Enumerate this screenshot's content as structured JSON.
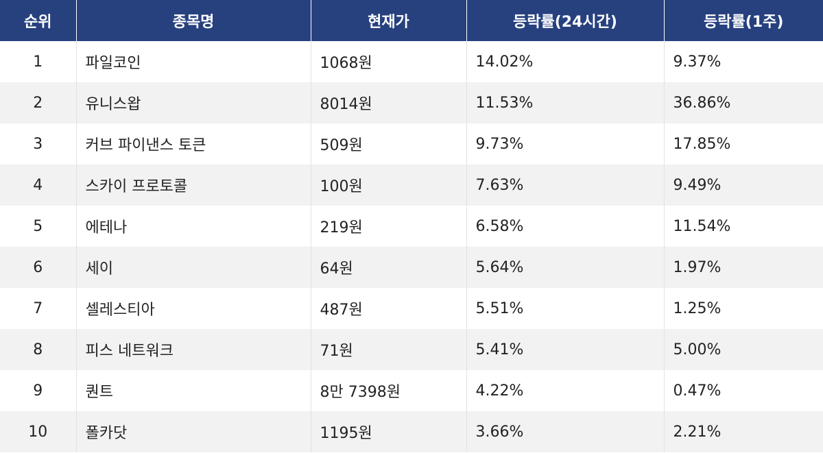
{
  "table": {
    "header": [
      "순위",
      "종목명",
      "현재가",
      "등락률(24시간)",
      "등락률(1주)"
    ],
    "rows": [
      [
        "1",
        "파일코인",
        "1068원",
        "14.02%",
        "9.37%"
      ],
      [
        "2",
        "유니스왑",
        "8014원",
        "11.53%",
        "36.86%"
      ],
      [
        "3",
        "커브 파이낸스 토큰",
        "509원",
        "9.73%",
        "17.85%"
      ],
      [
        "4",
        "스카이 프로토콜",
        "100원",
        "7.63%",
        "9.49%"
      ],
      [
        "5",
        "에테나",
        "219원",
        "6.58%",
        "11.54%"
      ],
      [
        "6",
        "세이",
        "64원",
        "5.64%",
        "1.97%"
      ],
      [
        "7",
        "셀레스티아",
        "487원",
        "5.51%",
        "1.25%"
      ],
      [
        "8",
        "피스 네트워크",
        "71원",
        "5.41%",
        "5.00%"
      ],
      [
        "9",
        "퀀트",
        "8만 7398원",
        "4.22%",
        "0.47%"
      ],
      [
        "10",
        "폴카닷",
        "1195원",
        "3.66%",
        "2.21%"
      ]
    ]
  }
}
